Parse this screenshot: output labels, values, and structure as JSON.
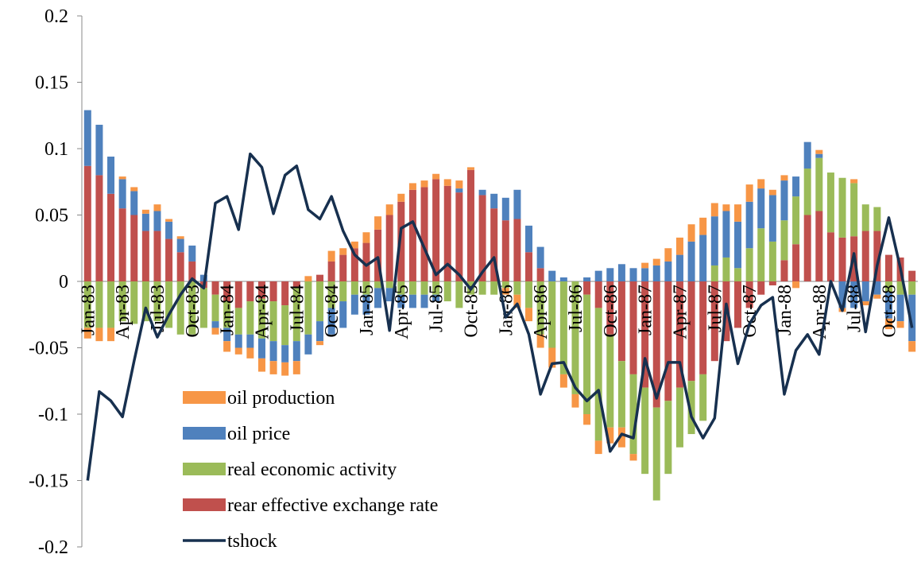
{
  "chart_data": {
    "type": "stacked-bar-line",
    "categories": [
      "Jan-83",
      null,
      null,
      "Apr-83",
      null,
      null,
      "Jul-83",
      null,
      null,
      "Oct-83",
      null,
      null,
      "Jan-84",
      null,
      null,
      "Apr-84",
      null,
      null,
      "Jul-84",
      null,
      null,
      "Oct-84",
      null,
      null,
      "Jan-85",
      null,
      null,
      "Apr-85",
      null,
      null,
      "Jul-85",
      null,
      null,
      "Oct-85",
      null,
      null,
      "Jan-86",
      null,
      null,
      "Apr-86",
      null,
      null,
      "Jul-86",
      null,
      null,
      "Oct-86",
      null,
      null,
      "Jan-87",
      null,
      null,
      "Apr-87",
      null,
      null,
      "Jul-87",
      null,
      null,
      "Oct-87",
      null,
      null,
      "Jan-88",
      null,
      null,
      "Apr-88",
      null,
      null,
      "Jul-88",
      null,
      null,
      "Oct-88",
      null,
      null
    ],
    "series": [
      {
        "name": "rear effective exchange rate",
        "color": "#c0504d",
        "values": [
          0.087,
          0.08,
          0.066,
          0.055,
          0.05,
          0.038,
          0.038,
          0.032,
          0.022,
          0.015,
          -0.005,
          -0.01,
          -0.015,
          -0.02,
          -0.015,
          -0.013,
          -0.015,
          -0.018,
          -0.005,
          0.0,
          0.005,
          0.015,
          0.02,
          0.025,
          0.029,
          0.039,
          0.05,
          0.06,
          0.069,
          0.071,
          0.077,
          0.072,
          0.067,
          0.084,
          0.065,
          0.055,
          0.046,
          0.047,
          0.022,
          0.01,
          0.0,
          0.0,
          0.0,
          -0.01,
          -0.02,
          -0.04,
          -0.06,
          -0.07,
          -0.08,
          -0.095,
          -0.09,
          -0.08,
          -0.075,
          -0.07,
          -0.06,
          -0.045,
          -0.035,
          -0.02,
          -0.01,
          -0.003,
          0.016,
          0.028,
          0.05,
          0.053,
          0.037,
          0.033,
          0.034,
          0.038,
          0.038,
          0.02,
          0.018,
          0.008
        ]
      },
      {
        "name": "real economic activity",
        "color": "#9bbb59",
        "values": [
          -0.035,
          -0.035,
          -0.035,
          -0.03,
          -0.032,
          -0.03,
          -0.03,
          -0.035,
          -0.04,
          -0.04,
          -0.03,
          -0.02,
          -0.02,
          -0.02,
          -0.025,
          -0.03,
          -0.03,
          -0.03,
          -0.04,
          -0.04,
          -0.03,
          -0.02,
          -0.015,
          -0.01,
          -0.01,
          -0.005,
          -0.005,
          -0.01,
          -0.01,
          -0.01,
          -0.01,
          -0.015,
          -0.02,
          -0.01,
          -0.01,
          -0.01,
          -0.005,
          -0.01,
          -0.02,
          -0.04,
          -0.05,
          -0.07,
          -0.085,
          -0.09,
          -0.1,
          -0.07,
          -0.05,
          -0.06,
          -0.065,
          -0.07,
          -0.055,
          -0.045,
          -0.04,
          -0.035,
          0.012,
          0.018,
          0.01,
          0.025,
          0.04,
          0.03,
          0.03,
          0.036,
          0.035,
          0.04,
          0.045,
          0.045,
          0.04,
          0.02,
          0.018,
          -0.008,
          -0.01,
          -0.01
        ]
      },
      {
        "name": "oil price",
        "color": "#4f81bd",
        "values": [
          0.042,
          0.038,
          0.028,
          0.022,
          0.018,
          0.013,
          0.015,
          0.013,
          0.01,
          0.012,
          0.005,
          -0.005,
          -0.01,
          -0.01,
          -0.01,
          -0.015,
          -0.015,
          -0.013,
          -0.015,
          -0.015,
          -0.015,
          -0.02,
          -0.02,
          -0.015,
          -0.015,
          -0.015,
          -0.01,
          -0.01,
          -0.01,
          -0.01,
          -0.005,
          0.0,
          0.003,
          0.0,
          0.004,
          0.011,
          0.017,
          0.022,
          0.02,
          0.016,
          0.008,
          0.003,
          0.0,
          0.003,
          0.008,
          0.01,
          0.013,
          0.01,
          0.01,
          0.012,
          0.015,
          0.02,
          0.03,
          0.035,
          0.037,
          0.035,
          0.035,
          0.035,
          0.03,
          0.035,
          0.03,
          0.015,
          0.02,
          0.003,
          0.0,
          -0.02,
          -0.02,
          -0.015,
          -0.01,
          -0.02,
          -0.02,
          -0.035
        ]
      },
      {
        "name": "oil production",
        "color": "#f79646",
        "values": [
          -0.008,
          -0.01,
          -0.01,
          0.002,
          0.003,
          0.003,
          0.005,
          0.002,
          0.002,
          0.0,
          0.0,
          -0.005,
          -0.008,
          -0.005,
          -0.008,
          -0.01,
          -0.01,
          -0.01,
          -0.01,
          0.004,
          -0.003,
          0.008,
          0.005,
          0.005,
          0.008,
          0.01,
          0.008,
          0.006,
          0.005,
          0.005,
          0.004,
          0.005,
          0.006,
          0.002,
          0.0,
          0.0,
          -0.005,
          -0.01,
          -0.01,
          -0.01,
          -0.015,
          -0.01,
          -0.01,
          -0.008,
          -0.01,
          -0.012,
          -0.015,
          -0.005,
          0.004,
          0.005,
          0.01,
          0.013,
          0.013,
          0.013,
          0.01,
          0.005,
          0.013,
          0.013,
          0.007,
          0.004,
          0.004,
          -0.005,
          0.0,
          0.003,
          0.0,
          -0.003,
          0.003,
          -0.003,
          -0.003,
          -0.008,
          -0.005,
          -0.008
        ]
      }
    ],
    "line": {
      "name": "tshock",
      "color": "#17304f",
      "values": [
        -0.15,
        -0.083,
        -0.09,
        -0.102,
        -0.06,
        -0.02,
        -0.042,
        -0.025,
        -0.01,
        0.002,
        -0.005,
        0.059,
        0.064,
        0.039,
        0.096,
        0.086,
        0.051,
        0.08,
        0.087,
        0.054,
        0.047,
        0.064,
        0.038,
        0.02,
        0.012,
        0.018,
        -0.037,
        0.04,
        0.045,
        0.025,
        0.005,
        0.013,
        0.005,
        -0.006,
        0.007,
        0.018,
        -0.027,
        -0.017,
        -0.04,
        -0.085,
        -0.062,
        -0.061,
        -0.08,
        -0.09,
        -0.082,
        -0.128,
        -0.115,
        -0.118,
        -0.058,
        -0.088,
        -0.061,
        -0.061,
        -0.102,
        -0.118,
        -0.103,
        -0.017,
        -0.062,
        -0.032,
        -0.018,
        -0.012,
        -0.085,
        -0.052,
        -0.04,
        -0.055,
        0.0,
        -0.022,
        0.021,
        -0.038,
        0.012,
        0.048,
        0.01,
        -0.035
      ]
    },
    "ylim": [
      -0.2,
      0.2
    ],
    "yticks": [
      -0.2,
      -0.15,
      -0.1,
      -0.05,
      0,
      0.05,
      0.1,
      0.15,
      0.2
    ],
    "legend": "lower left"
  }
}
